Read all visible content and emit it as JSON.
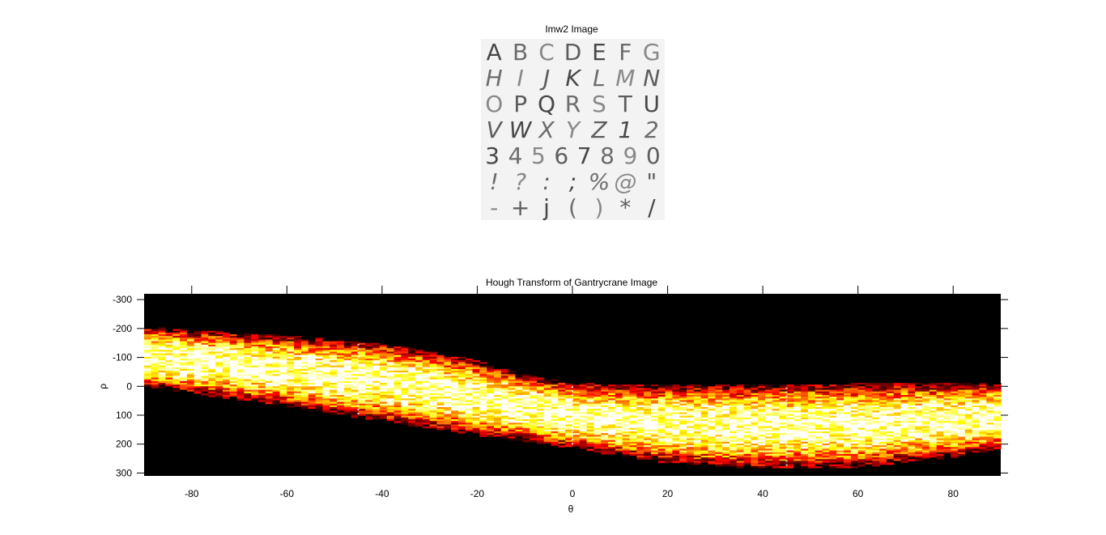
{
  "figure": {
    "top_title": "Imw2 Image",
    "image_rows": [
      [
        "A",
        "B",
        "C",
        "D",
        "E",
        "F",
        "G"
      ],
      [
        "H",
        "I",
        "J",
        "K",
        "L",
        "M",
        "N"
      ],
      [
        "O",
        "P",
        "Q",
        "R",
        "S",
        "T",
        "U"
      ],
      [
        "V",
        "W",
        "X",
        "Y",
        "Z",
        "1",
        "2"
      ],
      [
        "3",
        "4",
        "5",
        "6",
        "7",
        "8",
        "9",
        "0"
      ],
      [
        "!",
        "?",
        ":",
        ";",
        "%",
        "@",
        "\""
      ],
      [
        "-",
        "+",
        "j",
        "(",
        ")",
        "*",
        "/"
      ]
    ]
  },
  "chart_data": {
    "type": "heatmap",
    "title": "Hough Transform of Gantrycrane Image",
    "xlabel": "θ",
    "ylabel": "ρ",
    "xlim": [
      -90,
      90
    ],
    "ylim": [
      -320,
      310
    ],
    "y_reversed": true,
    "xticks": [
      -80,
      -60,
      -40,
      -20,
      0,
      20,
      40,
      60,
      80
    ],
    "yticks": [
      -300,
      -200,
      -100,
      0,
      100,
      200,
      300
    ],
    "colormap": "hot",
    "background_color": "#000000",
    "band": {
      "theta": [
        -90,
        -60,
        -40,
        -20,
        -10,
        0,
        20,
        40,
        60,
        80,
        90
      ],
      "rho_top": [
        -205,
        -175,
        -150,
        -90,
        -40,
        -10,
        -5,
        -5,
        -10,
        -10,
        -10
      ],
      "rho_bottom": [
        0,
        70,
        120,
        170,
        190,
        215,
        265,
        285,
        280,
        245,
        215
      ]
    },
    "peak_columns_theta": [
      -45,
      0,
      45
    ]
  }
}
